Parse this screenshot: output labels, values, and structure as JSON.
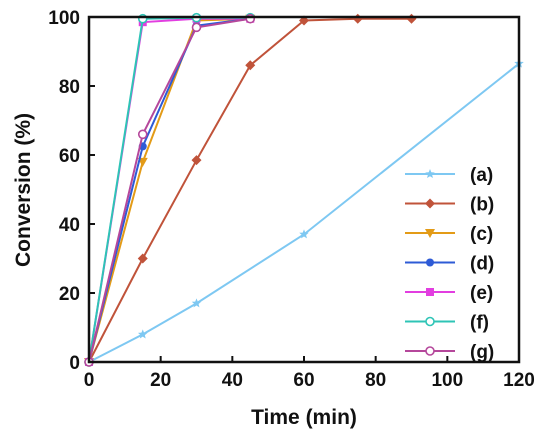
{
  "chart_data": {
    "type": "line",
    "title": "",
    "xlabel": "Time (min)",
    "ylabel": "Conversion (%)",
    "xlim": [
      0,
      120
    ],
    "ylim": [
      0,
      100
    ],
    "xticks": [
      0,
      20,
      40,
      60,
      80,
      100,
      120
    ],
    "yticks": [
      0,
      20,
      40,
      60,
      80,
      100
    ],
    "grid": false,
    "legend_position": "bottom-right",
    "series": [
      {
        "name": "(a)",
        "color": "#7ec8f2",
        "marker": "star",
        "x": [
          0,
          15,
          30,
          60,
          120
        ],
        "y": [
          0,
          8,
          17,
          37,
          86.5
        ]
      },
      {
        "name": "(b)",
        "color": "#c0533a",
        "marker": "diamond",
        "x": [
          0,
          15,
          30,
          45,
          60,
          75,
          90
        ],
        "y": [
          0,
          30,
          58.5,
          86,
          99,
          99.5,
          99.5
        ]
      },
      {
        "name": "(c)",
        "color": "#e39b17",
        "marker": "triangle-down",
        "x": [
          0,
          15,
          30,
          45
        ],
        "y": [
          0,
          58,
          99,
          99.5
        ]
      },
      {
        "name": "(d)",
        "color": "#2e5bd6",
        "marker": "circle",
        "x": [
          0,
          15,
          30,
          45
        ],
        "y": [
          0,
          62.5,
          97.5,
          99.5
        ]
      },
      {
        "name": "(e)",
        "color": "#e23ee0",
        "marker": "square",
        "x": [
          0,
          15,
          30,
          45
        ],
        "y": [
          0,
          98.5,
          99.5,
          99.5
        ]
      },
      {
        "name": "(f)",
        "color": "#2ec4b6",
        "marker": "circle-open",
        "x": [
          0,
          15,
          30,
          45
        ],
        "y": [
          0,
          99.5,
          99.8,
          99.8
        ]
      },
      {
        "name": "(g)",
        "color": "#b5479b",
        "marker": "circle-open",
        "x": [
          0,
          15,
          30,
          45
        ],
        "y": [
          0,
          66,
          97,
          99.5
        ]
      }
    ]
  }
}
